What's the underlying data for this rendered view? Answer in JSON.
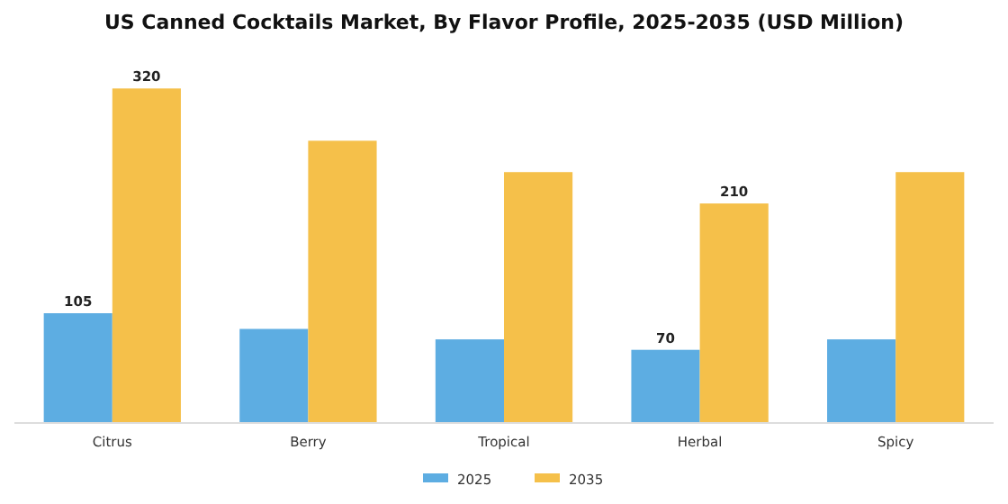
{
  "chart_data": {
    "type": "bar",
    "title": "US Canned Cocktails Market, By Flavor Profile, 2025-2035 (USD Million)",
    "categories": [
      "Citrus",
      "Berry",
      "Tropical",
      "Herbal",
      "Spicy"
    ],
    "series": [
      {
        "name": "2025",
        "color": "#5dade2",
        "values": [
          105,
          90,
          80,
          70,
          80
        ],
        "value_labels": [
          "105",
          null,
          null,
          "70",
          null
        ]
      },
      {
        "name": "2035",
        "color": "#f5c04a",
        "values": [
          320,
          270,
          240,
          210,
          240
        ],
        "value_labels": [
          "320",
          null,
          null,
          "210",
          null
        ]
      }
    ],
    "legend": "bottom",
    "grid": false
  }
}
